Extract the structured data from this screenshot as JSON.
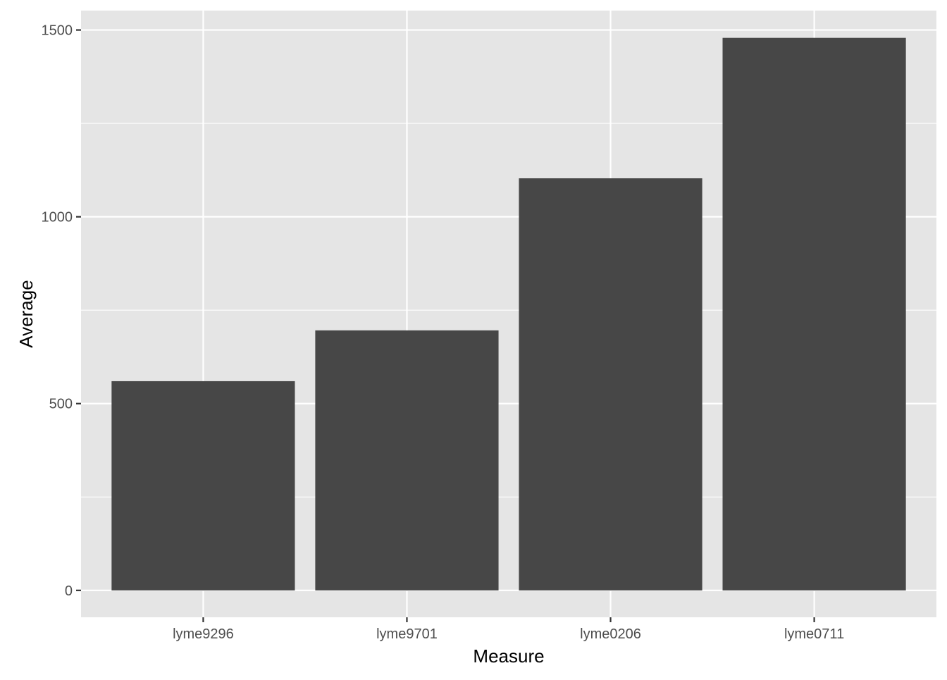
{
  "chart_data": {
    "type": "bar",
    "categories": [
      "lyme9296",
      "lyme9701",
      "lyme0206",
      "lyme0711"
    ],
    "values": [
      560,
      696,
      1103,
      1479
    ],
    "xlabel": "Measure",
    "ylabel": "Average",
    "ylim": [
      -72,
      1552
    ],
    "yticks": [
      0,
      500,
      1000,
      1500
    ],
    "yminor": [
      250,
      750,
      1250
    ],
    "grid": true,
    "colors": {
      "panel": "#e5e5e5",
      "bar": "#474747",
      "grid_major": "#ffffff",
      "tick_label": "#4d4d4d",
      "tick_mark": "#333333"
    }
  }
}
